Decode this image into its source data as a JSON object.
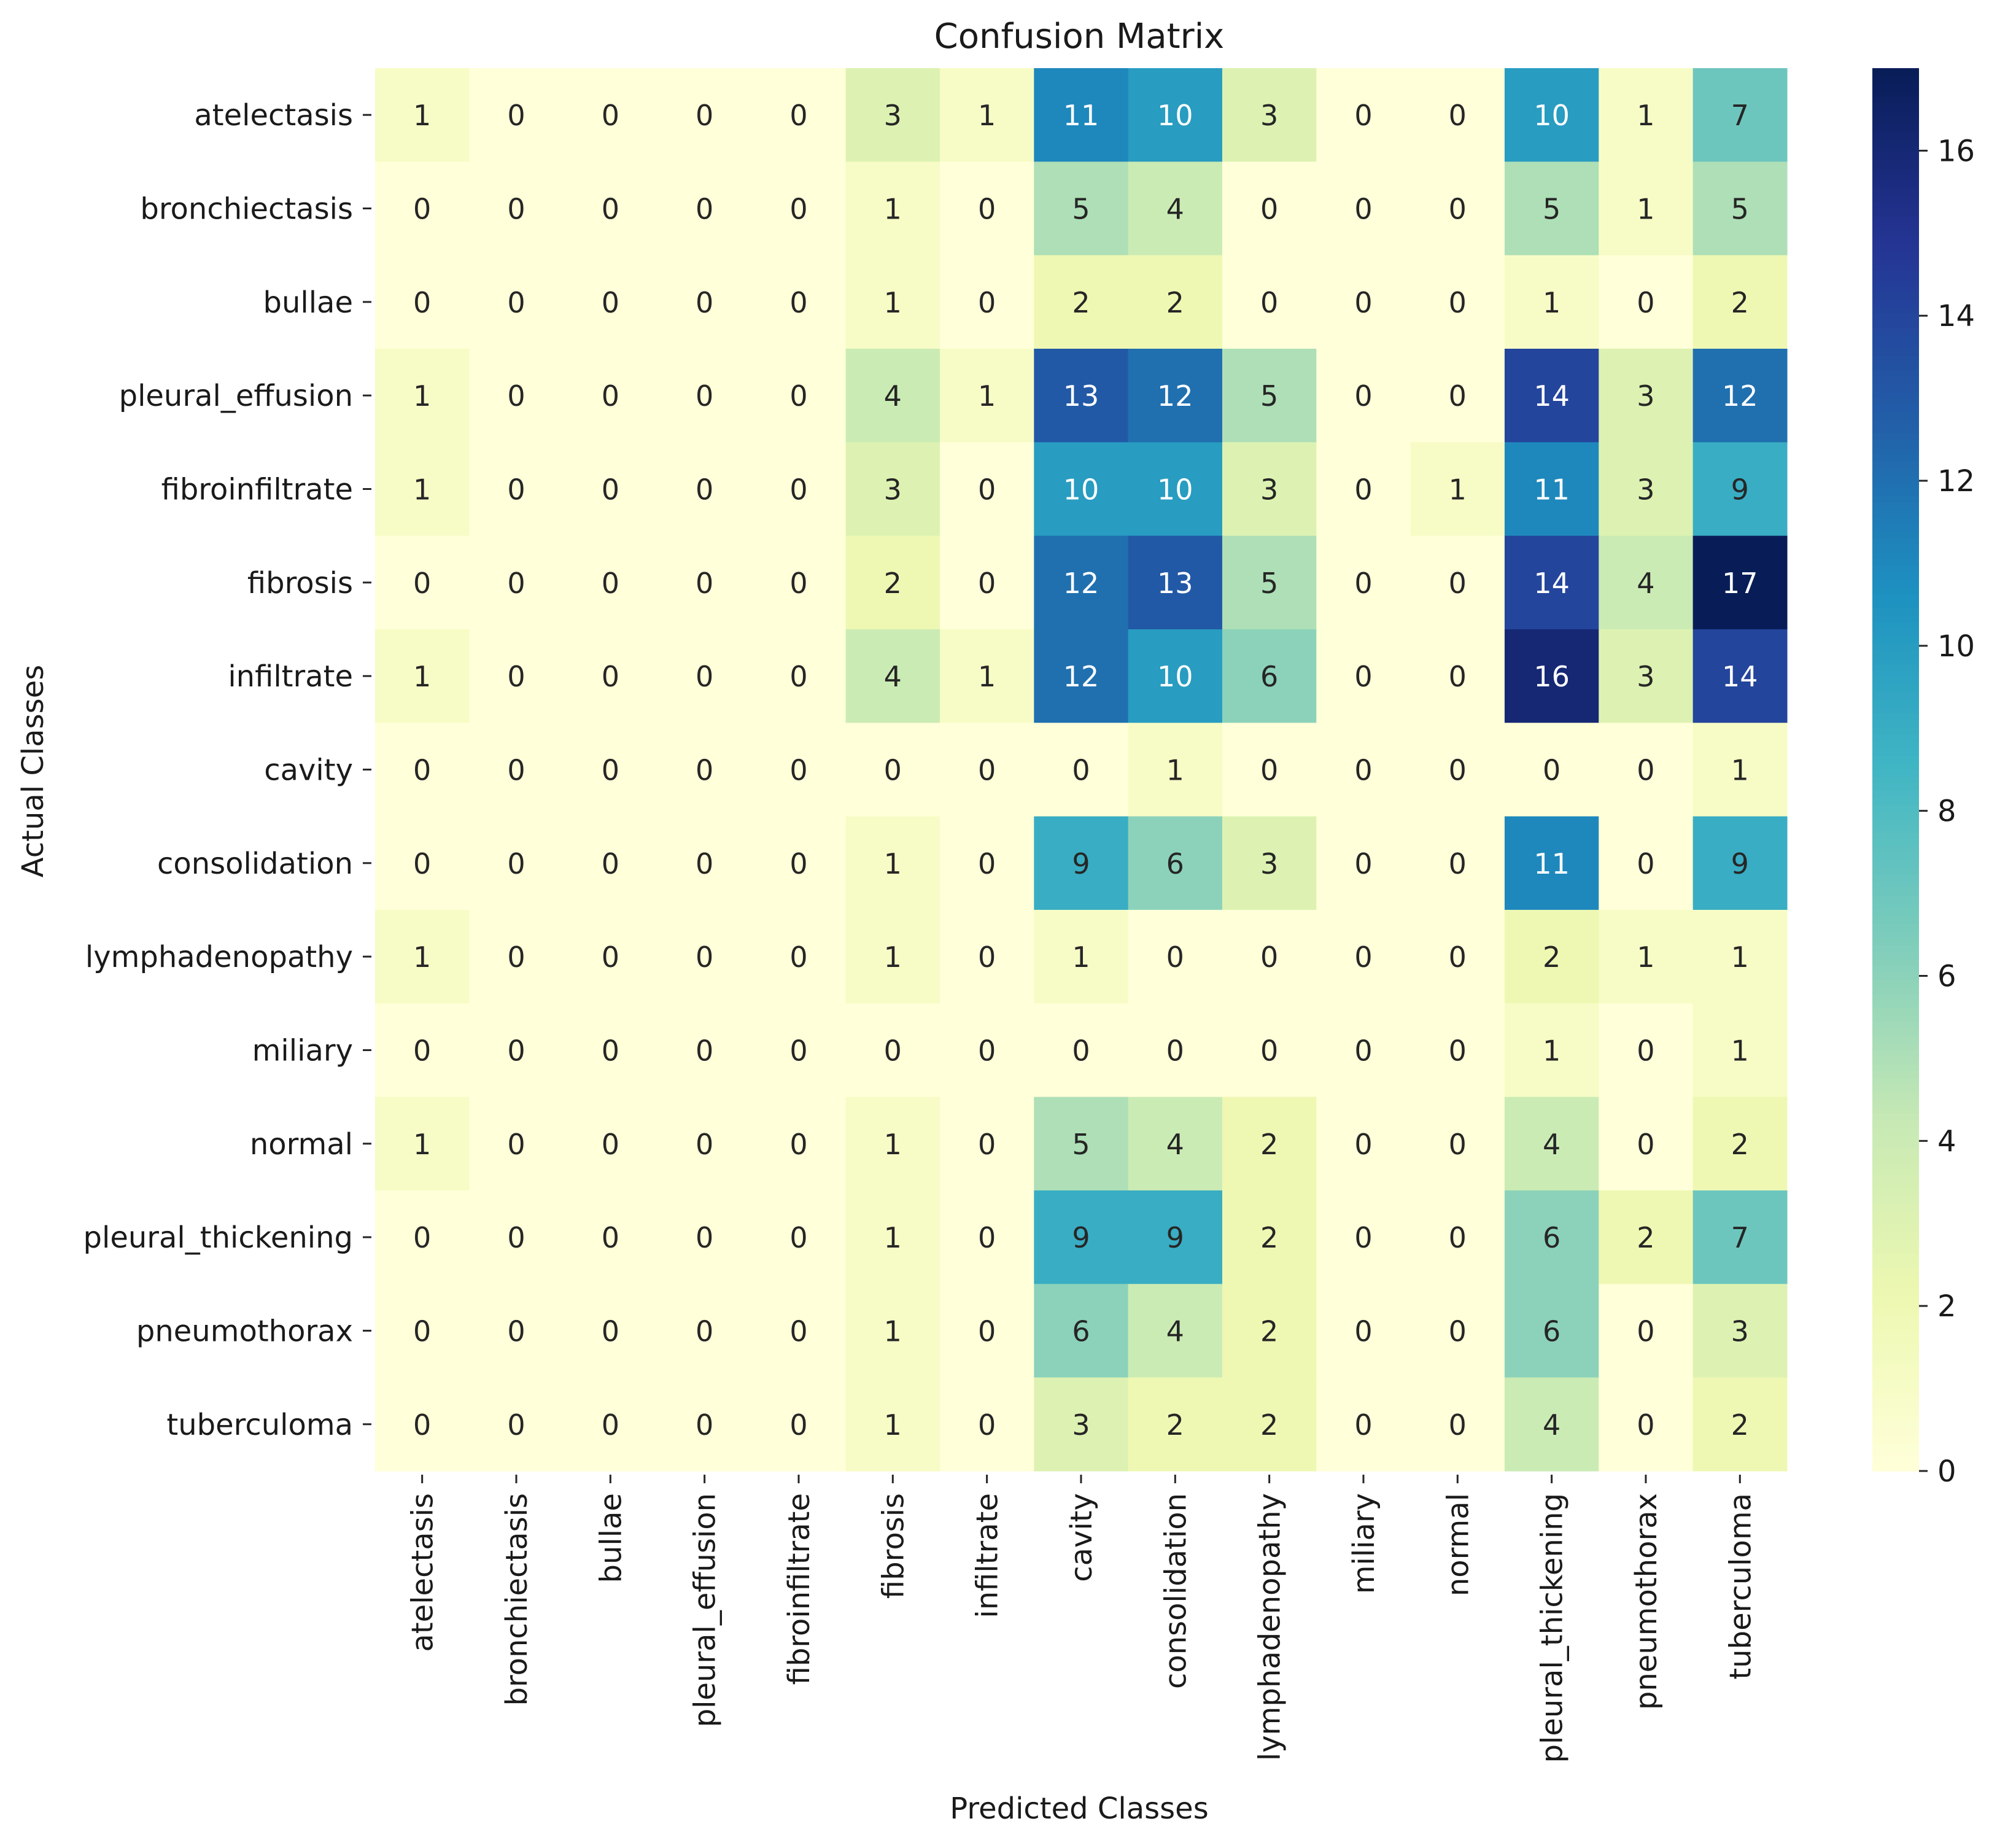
{
  "chart_data": {
    "type": "heatmap",
    "title": "Confusion Matrix",
    "xlabel": "Predicted Classes",
    "ylabel": "Actual Classes",
    "rows": [
      "atelectasis",
      "bronchiectasis",
      "bullae",
      "pleural_effusion",
      "fibroinfiltrate",
      "fibrosis",
      "infiltrate",
      "cavity",
      "consolidation",
      "lymphadenopathy",
      "miliary",
      "normal",
      "pleural_thickening",
      "pneumothorax",
      "tuberculoma"
    ],
    "columns": [
      "atelectasis",
      "bronchiectasis",
      "bullae",
      "pleural_effusion",
      "fibroinfiltrate",
      "fibrosis",
      "infiltrate",
      "cavity",
      "consolidation",
      "lymphadenopathy",
      "miliary",
      "normal",
      "pleural_thickening",
      "pneumothorax",
      "tuberculoma"
    ],
    "values": [
      [
        1,
        0,
        0,
        0,
        0,
        3,
        1,
        11,
        10,
        3,
        0,
        0,
        10,
        1,
        7
      ],
      [
        0,
        0,
        0,
        0,
        0,
        1,
        0,
        5,
        4,
        0,
        0,
        0,
        5,
        1,
        5
      ],
      [
        0,
        0,
        0,
        0,
        0,
        1,
        0,
        2,
        2,
        0,
        0,
        0,
        1,
        0,
        2
      ],
      [
        1,
        0,
        0,
        0,
        0,
        4,
        1,
        13,
        12,
        5,
        0,
        0,
        14,
        3,
        12
      ],
      [
        1,
        0,
        0,
        0,
        0,
        3,
        0,
        10,
        10,
        3,
        0,
        1,
        11,
        3,
        9
      ],
      [
        0,
        0,
        0,
        0,
        0,
        2,
        0,
        12,
        13,
        5,
        0,
        0,
        14,
        4,
        17
      ],
      [
        1,
        0,
        0,
        0,
        0,
        4,
        1,
        12,
        10,
        6,
        0,
        0,
        16,
        3,
        14
      ],
      [
        0,
        0,
        0,
        0,
        0,
        0,
        0,
        0,
        1,
        0,
        0,
        0,
        0,
        0,
        1
      ],
      [
        0,
        0,
        0,
        0,
        0,
        1,
        0,
        9,
        6,
        3,
        0,
        0,
        11,
        0,
        9
      ],
      [
        1,
        0,
        0,
        0,
        0,
        1,
        0,
        1,
        0,
        0,
        0,
        0,
        2,
        1,
        1
      ],
      [
        0,
        0,
        0,
        0,
        0,
        0,
        0,
        0,
        0,
        0,
        0,
        0,
        1,
        0,
        1
      ],
      [
        1,
        0,
        0,
        0,
        0,
        1,
        0,
        5,
        4,
        2,
        0,
        0,
        4,
        0,
        2
      ],
      [
        0,
        0,
        0,
        0,
        0,
        1,
        0,
        9,
        9,
        2,
        0,
        0,
        6,
        2,
        7
      ],
      [
        0,
        0,
        0,
        0,
        0,
        1,
        0,
        6,
        4,
        2,
        0,
        0,
        6,
        0,
        3
      ],
      [
        0,
        0,
        0,
        0,
        0,
        1,
        0,
        3,
        2,
        2,
        0,
        0,
        4,
        0,
        2
      ]
    ],
    "colormap": "YlGnBu",
    "vmin": 0,
    "vmax": 17,
    "colorbar_ticks": [
      0,
      2,
      4,
      6,
      8,
      10,
      12,
      14,
      16
    ],
    "annotations": true,
    "grid": false
  }
}
